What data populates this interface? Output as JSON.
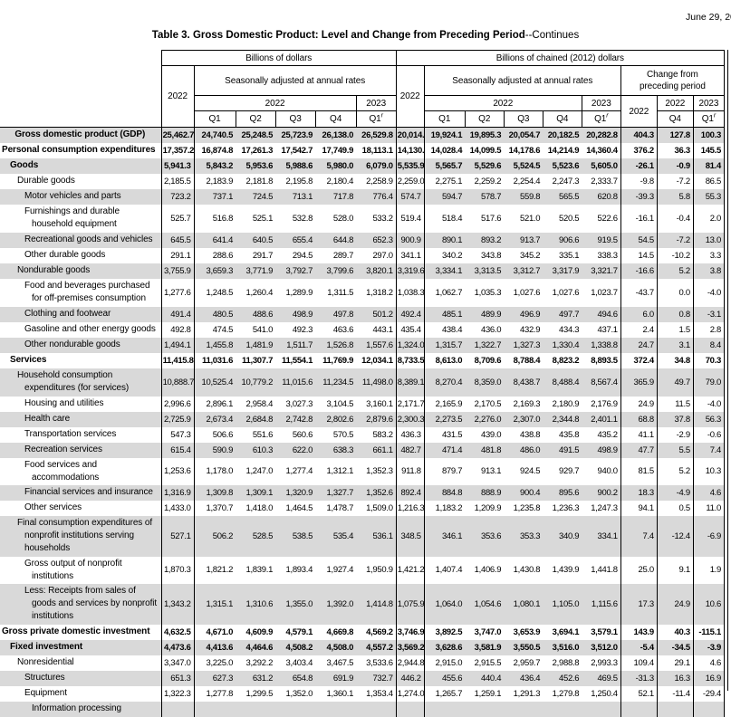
{
  "page": {
    "date_text": "June 29, 20",
    "title_bold": "Table 3. Gross Domestic Product: Level and Change from Preceding Period",
    "title_suffix": "--Continues"
  },
  "colors": {
    "stripe": "#d9d9d9",
    "border": "#000000",
    "text": "#000000"
  },
  "header": {
    "group_current": "Billions of dollars",
    "group_chained": "Billions of chained (2012) dollars",
    "saar": "Seasonally adjusted at annual rates",
    "change_group": "Change from preceding period",
    "y2022": "2022",
    "y2023": "2023",
    "quarters": [
      "Q1",
      "Q2",
      "Q3",
      "Q4"
    ],
    "q1_label": "Q1",
    "q4_label": "Q4",
    "revised_mark": "r"
  },
  "table": {
    "rows": [
      {
        "label": "Gross domestic product (GDP)",
        "indent": 0,
        "bold": true,
        "center": true,
        "lines": 1,
        "values": [
          "25,462.7",
          "24,740.5",
          "25,248.5",
          "25,723.9",
          "26,138.0",
          "26,529.8",
          "20,014.1",
          "19,924.1",
          "19,895.3",
          "20,054.7",
          "20,182.5",
          "20,282.8",
          "404.3",
          "127.8",
          "100.3"
        ]
      },
      {
        "label": "Personal consumption expenditures",
        "indent": 0,
        "bold": true,
        "center": false,
        "lines": 1,
        "values": [
          "17,357.2",
          "16,874.8",
          "17,261.3",
          "17,542.7",
          "17,749.9",
          "18,113.1",
          "14,130.3",
          "14,028.4",
          "14,099.5",
          "14,178.6",
          "14,214.9",
          "14,360.4",
          "376.2",
          "36.3",
          "145.5"
        ]
      },
      {
        "label": "Goods",
        "indent": 1,
        "bold": true,
        "center": false,
        "lines": 1,
        "values": [
          "5,941.3",
          "5,843.2",
          "5,953.6",
          "5,988.6",
          "5,980.0",
          "6,079.0",
          "5,535.9",
          "5,565.7",
          "5,529.6",
          "5,524.5",
          "5,523.6",
          "5,605.0",
          "-26.1",
          "-0.9",
          "81.4"
        ]
      },
      {
        "label": "Durable goods",
        "indent": 2,
        "bold": false,
        "center": false,
        "lines": 1,
        "values": [
          "2,185.5",
          "2,183.9",
          "2,181.8",
          "2,195.8",
          "2,180.4",
          "2,258.9",
          "2,259.0",
          "2,275.1",
          "2,259.2",
          "2,254.4",
          "2,247.3",
          "2,333.7",
          "-9.8",
          "-7.2",
          "86.5"
        ]
      },
      {
        "label": "Motor vehicles and parts",
        "indent": 3,
        "bold": false,
        "center": false,
        "lines": 1,
        "values": [
          "723.2",
          "737.1",
          "724.5",
          "713.1",
          "717.8",
          "776.4",
          "574.7",
          "594.7",
          "578.7",
          "559.8",
          "565.5",
          "620.8",
          "-39.3",
          "5.8",
          "55.3"
        ]
      },
      {
        "label": "Furnishings and durable household equipment",
        "indent": 3,
        "bold": false,
        "center": false,
        "lines": 2,
        "values": [
          "525.7",
          "516.8",
          "525.1",
          "532.8",
          "528.0",
          "533.2",
          "519.4",
          "518.4",
          "517.6",
          "521.0",
          "520.5",
          "522.6",
          "-16.1",
          "-0.4",
          "2.0"
        ]
      },
      {
        "label": "Recreational goods and vehicles",
        "indent": 3,
        "bold": false,
        "center": false,
        "lines": 1,
        "values": [
          "645.5",
          "641.4",
          "640.5",
          "655.4",
          "644.8",
          "652.3",
          "900.9",
          "890.1",
          "893.2",
          "913.7",
          "906.6",
          "919.5",
          "54.5",
          "-7.2",
          "13.0"
        ]
      },
      {
        "label": "Other durable goods",
        "indent": 3,
        "bold": false,
        "center": false,
        "lines": 1,
        "values": [
          "291.1",
          "288.6",
          "291.7",
          "294.5",
          "289.7",
          "297.0",
          "341.1",
          "340.2",
          "343.8",
          "345.2",
          "335.1",
          "338.3",
          "14.5",
          "-10.2",
          "3.3"
        ]
      },
      {
        "label": "Nondurable goods",
        "indent": 2,
        "bold": false,
        "center": false,
        "lines": 1,
        "values": [
          "3,755.9",
          "3,659.3",
          "3,771.9",
          "3,792.7",
          "3,799.6",
          "3,820.1",
          "3,319.6",
          "3,334.1",
          "3,313.5",
          "3,312.7",
          "3,317.9",
          "3,321.7",
          "-16.6",
          "5.2",
          "3.8"
        ]
      },
      {
        "label": "Food and beverages purchased for off-premises consumption",
        "indent": 3,
        "bold": false,
        "center": false,
        "lines": 2,
        "values": [
          "1,277.6",
          "1,248.5",
          "1,260.4",
          "1,289.9",
          "1,311.5",
          "1,318.2",
          "1,038.3",
          "1,062.7",
          "1,035.3",
          "1,027.6",
          "1,027.6",
          "1,023.7",
          "-43.7",
          "0.0",
          "-4.0"
        ]
      },
      {
        "label": "Clothing and footwear",
        "indent": 3,
        "bold": false,
        "center": false,
        "lines": 1,
        "values": [
          "491.4",
          "480.5",
          "488.6",
          "498.9",
          "497.8",
          "501.2",
          "492.4",
          "485.1",
          "489.9",
          "496.9",
          "497.7",
          "494.6",
          "6.0",
          "0.8",
          "-3.1"
        ]
      },
      {
        "label": "Gasoline and other energy goods",
        "indent": 3,
        "bold": false,
        "center": false,
        "lines": 1,
        "values": [
          "492.8",
          "474.5",
          "541.0",
          "492.3",
          "463.6",
          "443.1",
          "435.4",
          "438.4",
          "436.0",
          "432.9",
          "434.3",
          "437.1",
          "2.4",
          "1.5",
          "2.8"
        ]
      },
      {
        "label": "Other nondurable goods",
        "indent": 3,
        "bold": false,
        "center": false,
        "lines": 1,
        "values": [
          "1,494.1",
          "1,455.8",
          "1,481.9",
          "1,511.7",
          "1,526.8",
          "1,557.6",
          "1,324.0",
          "1,315.7",
          "1,322.7",
          "1,327.3",
          "1,330.4",
          "1,338.8",
          "24.7",
          "3.1",
          "8.4"
        ]
      },
      {
        "label": "Services",
        "indent": 1,
        "bold": true,
        "center": false,
        "lines": 1,
        "values": [
          "11,415.8",
          "11,031.6",
          "11,307.7",
          "11,554.1",
          "11,769.9",
          "12,034.1",
          "8,733.5",
          "8,613.0",
          "8,709.6",
          "8,788.4",
          "8,823.2",
          "8,893.5",
          "372.4",
          "34.8",
          "70.3"
        ]
      },
      {
        "label": "Household consumption expenditures (for services)",
        "indent": 2,
        "bold": false,
        "center": false,
        "lines": 2,
        "values": [
          "10,888.7",
          "10,525.4",
          "10,779.2",
          "11,015.6",
          "11,234.5",
          "11,498.0",
          "8,389.1",
          "8,270.4",
          "8,359.0",
          "8,438.7",
          "8,488.4",
          "8,567.4",
          "365.9",
          "49.7",
          "79.0"
        ]
      },
      {
        "label": "Housing and utilities",
        "indent": 3,
        "bold": false,
        "center": false,
        "lines": 1,
        "values": [
          "2,996.6",
          "2,896.1",
          "2,958.4",
          "3,027.3",
          "3,104.5",
          "3,160.1",
          "2,171.7",
          "2,165.9",
          "2,170.5",
          "2,169.3",
          "2,180.9",
          "2,176.9",
          "24.9",
          "11.5",
          "-4.0"
        ]
      },
      {
        "label": "Health care",
        "indent": 3,
        "bold": false,
        "center": false,
        "lines": 1,
        "values": [
          "2,725.9",
          "2,673.4",
          "2,684.8",
          "2,742.8",
          "2,802.6",
          "2,879.6",
          "2,300.3",
          "2,273.5",
          "2,276.0",
          "2,307.0",
          "2,344.8",
          "2,401.1",
          "68.8",
          "37.8",
          "56.3"
        ]
      },
      {
        "label": "Transportation services",
        "indent": 3,
        "bold": false,
        "center": false,
        "lines": 1,
        "values": [
          "547.3",
          "506.6",
          "551.6",
          "560.6",
          "570.5",
          "583.2",
          "436.3",
          "431.5",
          "439.0",
          "438.8",
          "435.8",
          "435.2",
          "41.1",
          "-2.9",
          "-0.6"
        ]
      },
      {
        "label": "Recreation services",
        "indent": 3,
        "bold": false,
        "center": false,
        "lines": 1,
        "values": [
          "615.4",
          "590.9",
          "610.3",
          "622.0",
          "638.3",
          "661.1",
          "482.7",
          "471.4",
          "481.8",
          "486.0",
          "491.5",
          "498.9",
          "47.7",
          "5.5",
          "7.4"
        ]
      },
      {
        "label": "Food services and accommodations",
        "indent": 3,
        "bold": false,
        "center": false,
        "lines": 1,
        "values": [
          "1,253.6",
          "1,178.0",
          "1,247.0",
          "1,277.4",
          "1,312.1",
          "1,352.3",
          "911.8",
          "879.7",
          "913.1",
          "924.5",
          "929.7",
          "940.0",
          "81.5",
          "5.2",
          "10.3"
        ]
      },
      {
        "label": "Financial services and insurance",
        "indent": 3,
        "bold": false,
        "center": false,
        "lines": 1,
        "values": [
          "1,316.9",
          "1,309.8",
          "1,309.1",
          "1,320.9",
          "1,327.7",
          "1,352.6",
          "892.4",
          "884.8",
          "888.9",
          "900.4",
          "895.6",
          "900.2",
          "18.3",
          "-4.9",
          "4.6"
        ]
      },
      {
        "label": "Other services",
        "indent": 3,
        "bold": false,
        "center": false,
        "lines": 1,
        "values": [
          "1,433.0",
          "1,370.7",
          "1,418.0",
          "1,464.5",
          "1,478.7",
          "1,509.0",
          "1,216.3",
          "1,183.2",
          "1,209.9",
          "1,235.8",
          "1,236.3",
          "1,247.3",
          "94.1",
          "0.5",
          "11.0"
        ]
      },
      {
        "label": "Final consumption expenditures of nonprofit institutions serving households",
        "indent": 2,
        "bold": false,
        "center": false,
        "lines": 3,
        "values": [
          "527.1",
          "506.2",
          "528.5",
          "538.5",
          "535.4",
          "536.1",
          "348.5",
          "346.1",
          "353.6",
          "353.3",
          "340.9",
          "334.1",
          "7.4",
          "-12.4",
          "-6.9"
        ]
      },
      {
        "label": "Gross output of nonprofit institutions",
        "indent": 3,
        "bold": false,
        "center": false,
        "lines": 1,
        "values": [
          "1,870.3",
          "1,821.2",
          "1,839.1",
          "1,893.4",
          "1,927.4",
          "1,950.9",
          "1,421.2",
          "1,407.4",
          "1,406.9",
          "1,430.8",
          "1,439.9",
          "1,441.8",
          "25.0",
          "9.1",
          "1.9"
        ]
      },
      {
        "label": "Less: Receipts from sales of goods and services by nonprofit institutions",
        "indent": 3,
        "bold": false,
        "center": false,
        "lines": 3,
        "values": [
          "1,343.2",
          "1,315.1",
          "1,310.6",
          "1,355.0",
          "1,392.0",
          "1,414.8",
          "1,075.9",
          "1,064.0",
          "1,054.6",
          "1,080.1",
          "1,105.0",
          "1,115.6",
          "17.3",
          "24.9",
          "10.6"
        ]
      },
      {
        "label": "Gross private domestic investment",
        "indent": 0,
        "bold": true,
        "center": false,
        "lines": 1,
        "values": [
          "4,632.5",
          "4,671.0",
          "4,609.9",
          "4,579.1",
          "4,669.8",
          "4,569.2",
          "3,746.9",
          "3,892.5",
          "3,747.0",
          "3,653.9",
          "3,694.1",
          "3,579.1",
          "143.9",
          "40.3",
          "-115.1"
        ]
      },
      {
        "label": "Fixed investment",
        "indent": 1,
        "bold": true,
        "center": false,
        "lines": 1,
        "values": [
          "4,473.6",
          "4,413.6",
          "4,464.6",
          "4,508.2",
          "4,508.0",
          "4,557.2",
          "3,569.2",
          "3,628.6",
          "3,581.9",
          "3,550.5",
          "3,516.0",
          "3,512.0",
          "-5.4",
          "-34.5",
          "-3.9"
        ]
      },
      {
        "label": "Nonresidential",
        "indent": 2,
        "bold": false,
        "center": false,
        "lines": 1,
        "values": [
          "3,347.0",
          "3,225.0",
          "3,292.2",
          "3,403.4",
          "3,467.5",
          "3,533.6",
          "2,944.8",
          "2,915.0",
          "2,915.5",
          "2,959.7",
          "2,988.8",
          "2,993.3",
          "109.4",
          "29.1",
          "4.6"
        ]
      },
      {
        "label": "Structures",
        "indent": 3,
        "bold": false,
        "center": false,
        "lines": 1,
        "values": [
          "651.3",
          "627.3",
          "631.2",
          "654.8",
          "691.9",
          "732.7",
          "446.2",
          "455.6",
          "440.4",
          "436.4",
          "452.6",
          "469.5",
          "-31.3",
          "16.3",
          "16.9"
        ]
      },
      {
        "label": "Equipment",
        "indent": 3,
        "bold": false,
        "center": false,
        "lines": 1,
        "values": [
          "1,322.3",
          "1,277.8",
          "1,299.5",
          "1,352.0",
          "1,360.1",
          "1,353.4",
          "1,274.0",
          "1,265.7",
          "1,259.1",
          "1,291.3",
          "1,279.8",
          "1,250.4",
          "52.1",
          "-11.4",
          "-29.4"
        ]
      },
      {
        "label": "Information processing",
        "indent": 4,
        "bold": false,
        "center": false,
        "lines": 1,
        "values": [
          "",
          "",
          "",
          "",
          "",
          "",
          "",
          "",
          "",
          "",
          "",
          "",
          "",
          "",
          ""
        ]
      }
    ]
  }
}
